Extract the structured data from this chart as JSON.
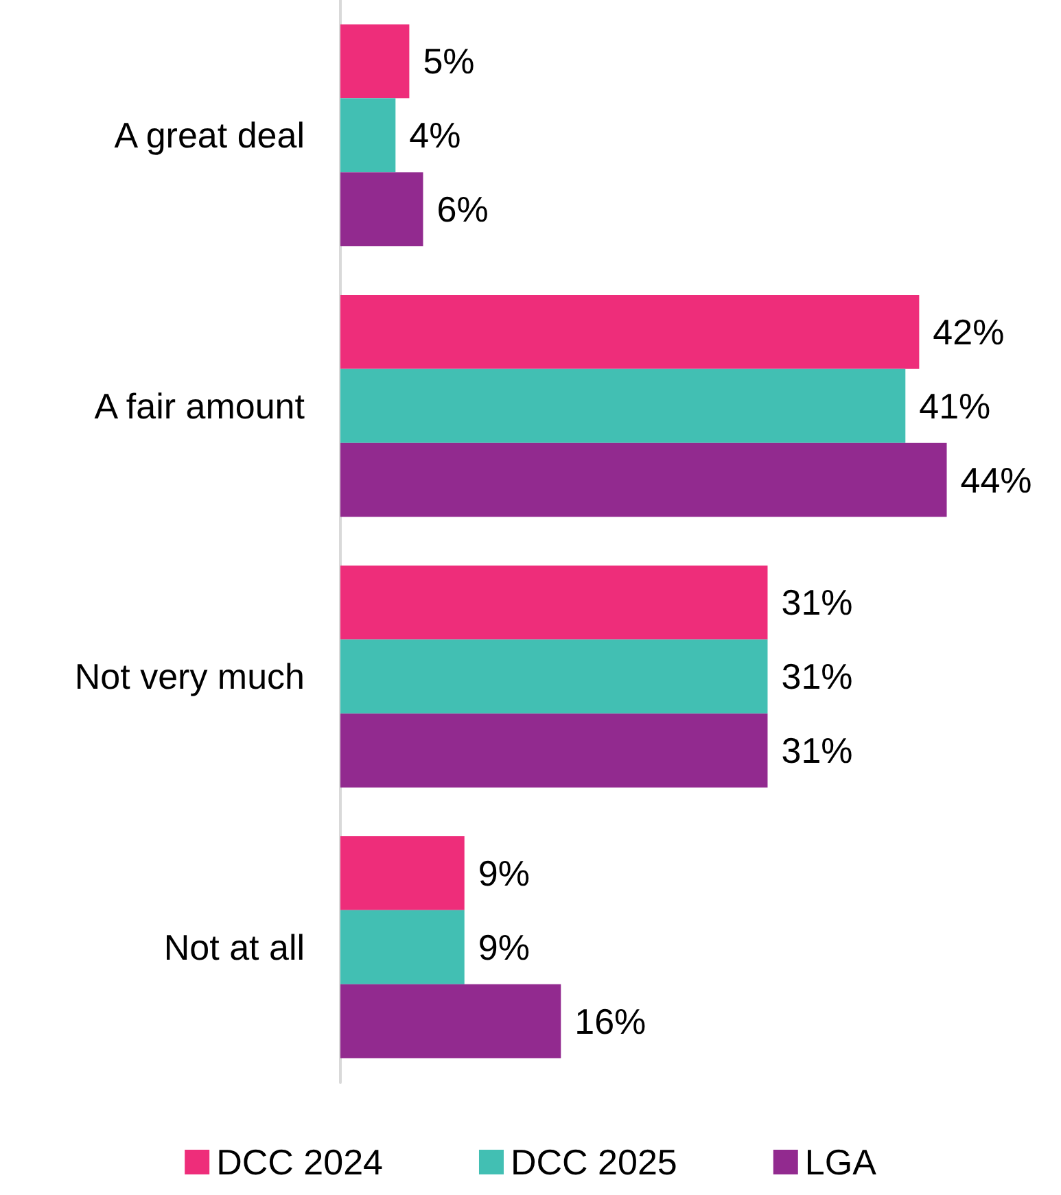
{
  "chart_data": {
    "type": "bar",
    "orientation": "horizontal",
    "categories": [
      "A great deal",
      "A fair amount",
      "Not very much",
      "Not at all"
    ],
    "series": [
      {
        "name": "DCC 2024",
        "color": "#ee2d7a",
        "values": [
          5,
          42,
          31,
          9
        ],
        "value_labels": [
          "5%",
          "42%",
          "31%",
          "9%"
        ]
      },
      {
        "name": "DCC 2025",
        "color": "#42bfb3",
        "values": [
          4,
          41,
          31,
          9
        ],
        "value_labels": [
          "4%",
          "41%",
          "31%",
          "9%"
        ]
      },
      {
        "name": "LGA",
        "color": "#922a8f",
        "values": [
          6,
          44,
          31,
          16
        ],
        "value_labels": [
          "6%",
          "44%",
          "31%",
          "16%"
        ]
      }
    ],
    "legend": "bottom",
    "grid": false,
    "tick_labels": "y"
  }
}
